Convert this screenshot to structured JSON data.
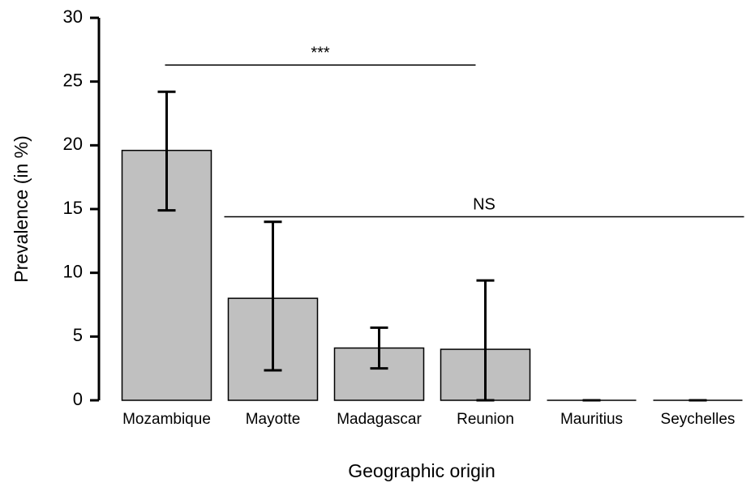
{
  "chart_data": {
    "type": "bar",
    "x_label": "Geographic origin",
    "y_label": "Prevalence (in %)",
    "categories": [
      "Mozambique",
      "Mayotte",
      "Madagascar",
      "Reunion",
      "Mauritius",
      "Seychelles"
    ],
    "values": [
      19.6,
      8.0,
      4.1,
      4.0,
      0,
      0
    ],
    "error_lower": [
      14.9,
      2.35,
      2.5,
      0,
      0,
      0
    ],
    "error_upper": [
      24.2,
      14.0,
      5.7,
      9.4,
      0,
      0
    ],
    "color": "#c0c0c0",
    "ylim": [
      0,
      30
    ],
    "yticks": [
      0,
      5,
      10,
      15,
      20,
      25,
      30
    ],
    "annotations": [
      {
        "text": "***",
        "y": 26.3,
        "from": 0,
        "to": 3
      },
      {
        "text": "NS",
        "y": 14.4,
        "from": 1,
        "to": 5
      }
    ]
  }
}
